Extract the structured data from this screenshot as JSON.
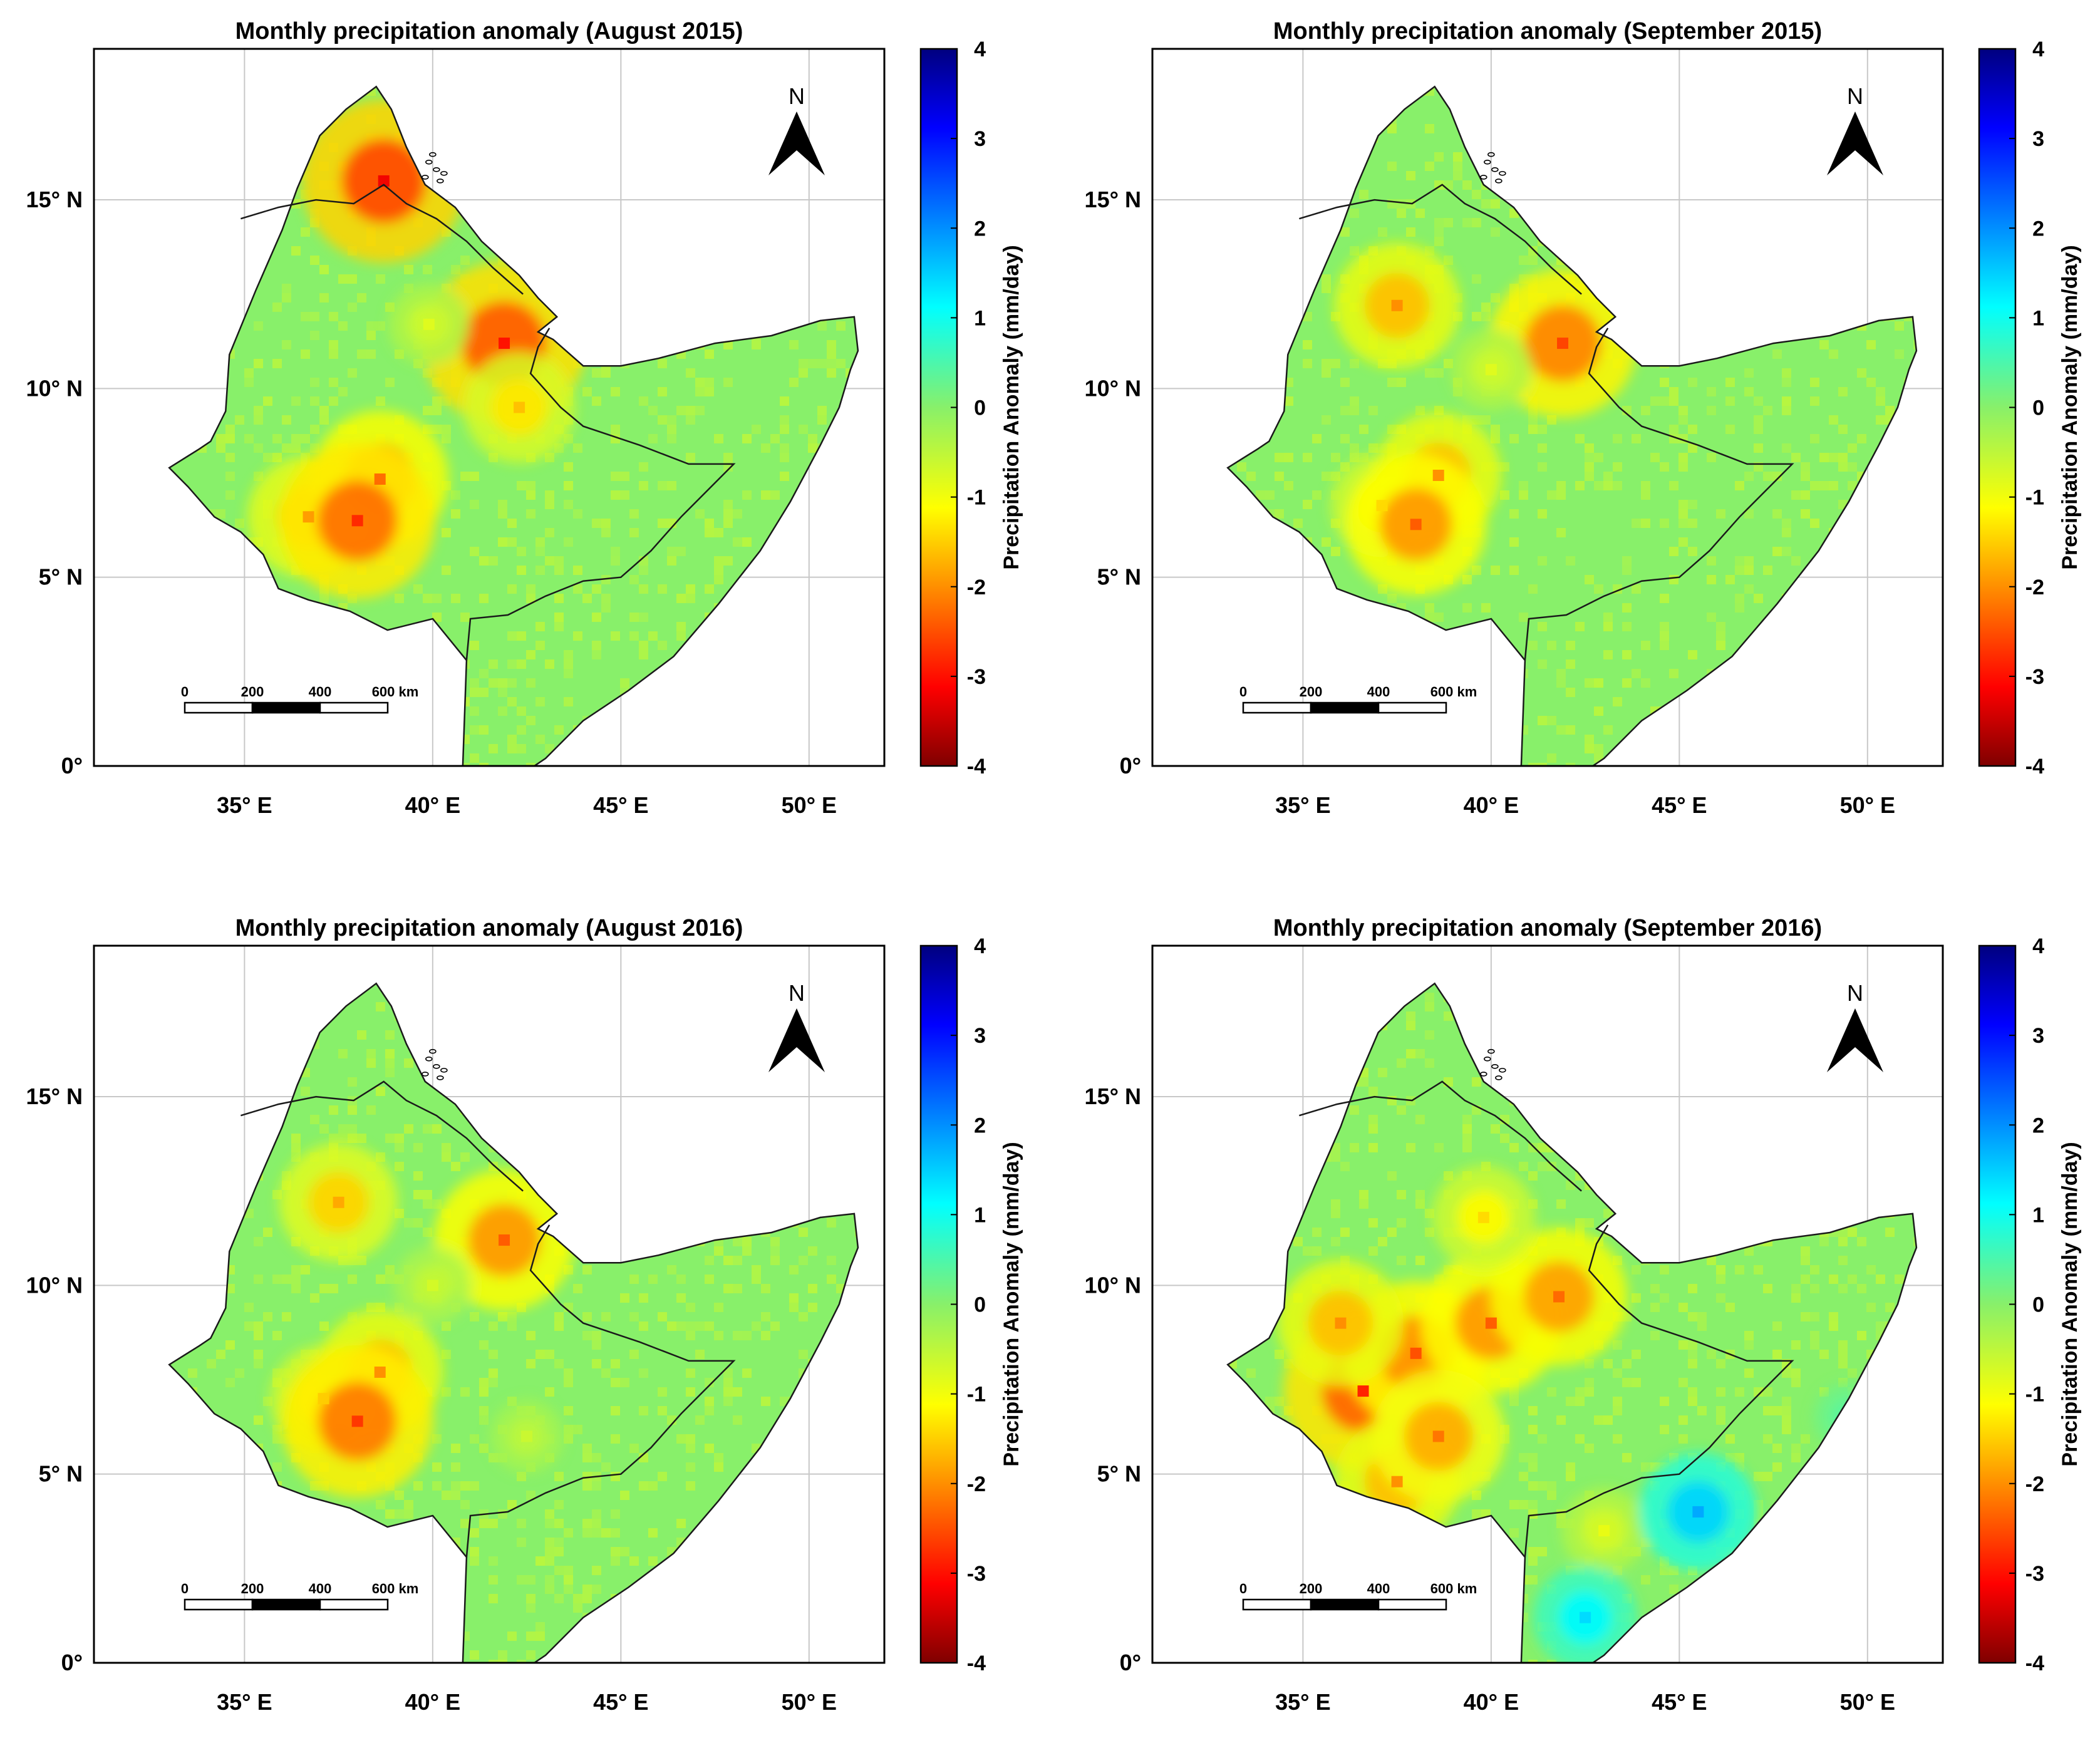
{
  "figure": {
    "panels": [
      {
        "title": "Monthly precipitation anomaly (August 2015)",
        "colorbar_label": "Precipitation Anomaly (mm/day)",
        "north_label": "N",
        "scalebar_labels": [
          "0",
          "200",
          "400",
          "600 km"
        ],
        "anomaly_hotspots": [
          {
            "lon": 36.7,
            "lat": 6.6,
            "anomaly": -1.9
          },
          {
            "lon": 38.6,
            "lat": 7.6,
            "anomaly": -2.3
          },
          {
            "lon": 38.0,
            "lat": 6.5,
            "anomaly": -2.8
          },
          {
            "lon": 38.7,
            "lat": 15.5,
            "anomaly": -3.2
          },
          {
            "lon": 41.9,
            "lat": 11.2,
            "anomaly": -3.0
          },
          {
            "lon": 42.3,
            "lat": 9.5,
            "anomaly": -1.6
          },
          {
            "lon": 39.9,
            "lat": 11.7,
            "anomaly": -0.8
          }
        ]
      },
      {
        "title": "Monthly precipitation anomaly (September 2015)",
        "colorbar_label": "Precipitation Anomaly (mm/day)",
        "north_label": "N",
        "scalebar_labels": [
          "0",
          "200",
          "400",
          "600 km"
        ],
        "anomaly_hotspots": [
          {
            "lon": 37.1,
            "lat": 6.9,
            "anomaly": -1.4
          },
          {
            "lon": 38.6,
            "lat": 7.7,
            "anomaly": -2.0
          },
          {
            "lon": 38.0,
            "lat": 6.4,
            "anomaly": -2.4
          },
          {
            "lon": 37.5,
            "lat": 12.2,
            "anomaly": -2.0
          },
          {
            "lon": 41.9,
            "lat": 11.2,
            "anomaly": -2.6
          },
          {
            "lon": 40.0,
            "lat": 10.5,
            "anomaly": -0.8
          }
        ]
      },
      {
        "title": "Monthly precipitation anomaly (August 2016)",
        "colorbar_label": "Precipitation Anomaly (mm/day)",
        "north_label": "N",
        "scalebar_labels": [
          "0",
          "200",
          "400",
          "600 km"
        ],
        "anomaly_hotspots": [
          {
            "lon": 37.1,
            "lat": 7.0,
            "anomaly": -1.5
          },
          {
            "lon": 38.6,
            "lat": 7.7,
            "anomaly": -2.0
          },
          {
            "lon": 38.0,
            "lat": 6.4,
            "anomaly": -2.7
          },
          {
            "lon": 37.5,
            "lat": 12.2,
            "anomaly": -1.8
          },
          {
            "lon": 41.9,
            "lat": 11.2,
            "anomaly": -2.4
          },
          {
            "lon": 40.0,
            "lat": 10.0,
            "anomaly": -0.7
          },
          {
            "lon": 42.5,
            "lat": 6.0,
            "anomaly": -0.6
          }
        ]
      },
      {
        "title": "Monthly precipitation anomaly (September 2016)",
        "colorbar_label": "Precipitation Anomaly (mm/day)",
        "north_label": "N",
        "scalebar_labels": [
          "0",
          "200",
          "400",
          "600 km"
        ],
        "anomaly_hotspots": [
          {
            "lon": 36.6,
            "lat": 7.2,
            "anomaly": -2.9
          },
          {
            "lon": 38.0,
            "lat": 8.2,
            "anomaly": -2.5
          },
          {
            "lon": 40.0,
            "lat": 9.0,
            "anomaly": -2.4
          },
          {
            "lon": 41.8,
            "lat": 9.7,
            "anomaly": -2.3
          },
          {
            "lon": 39.8,
            "lat": 11.8,
            "anomaly": -1.4
          },
          {
            "lon": 37.5,
            "lat": 4.8,
            "anomaly": -2.0
          },
          {
            "lon": 36.0,
            "lat": 9.0,
            "anomaly": -2.0
          },
          {
            "lon": 38.6,
            "lat": 6.0,
            "anomaly": -2.2
          },
          {
            "lon": 43.0,
            "lat": 3.5,
            "anomaly": -0.9
          },
          {
            "lon": 45.5,
            "lat": 4.0,
            "anomaly": 1.8
          },
          {
            "lon": 42.5,
            "lat": 1.2,
            "anomaly": 1.4
          },
          {
            "lon": 49.5,
            "lat": 6.5,
            "anomaly": 0.5
          }
        ]
      }
    ],
    "xticks": [
      {
        "lon": 35,
        "label": "35° E"
      },
      {
        "lon": 40,
        "label": "40° E"
      },
      {
        "lon": 45,
        "label": "45° E"
      },
      {
        "lon": 50,
        "label": "50° E"
      }
    ],
    "yticks": [
      {
        "lat": 0,
        "label": "0°"
      },
      {
        "lat": 5,
        "label": "5° N"
      },
      {
        "lat": 10,
        "label": "10° N"
      },
      {
        "lat": 15,
        "label": "15° N"
      }
    ],
    "colorbar_ticks": [
      "4",
      "3",
      "2",
      "1",
      "0",
      "-1",
      "-2",
      "-3",
      "-4"
    ],
    "lon_range": [
      31,
      52
    ],
    "lat_range": [
      0,
      19
    ],
    "anomaly_range": [
      -4,
      4
    ],
    "colors": {
      "baseline": "#88f06a",
      "land_border": "#1a1a1a",
      "grid": "#c8c8c8",
      "frame": "#000000"
    }
  }
}
